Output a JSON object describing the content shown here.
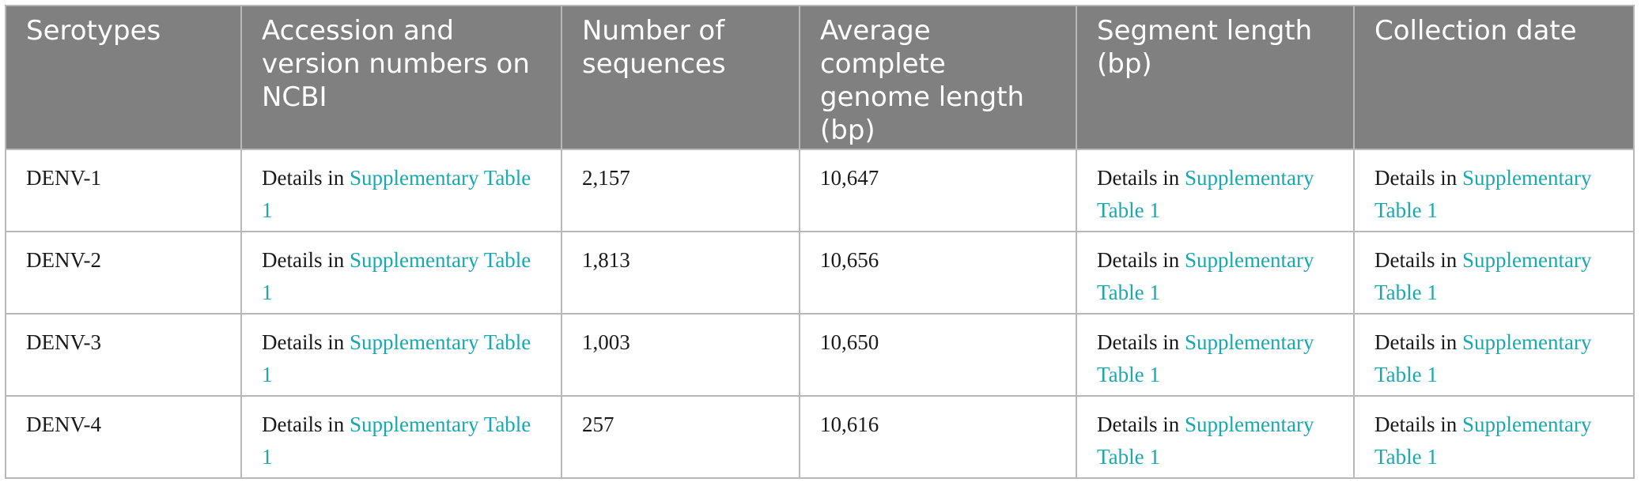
{
  "table": {
    "headers": [
      "Serotypes",
      "Accession and version numbers on NCBI",
      "Number of sequences",
      "Average complete genome length (bp)",
      "Segment length (bp)",
      "Collection date"
    ],
    "details_prefix": "Details in",
    "details_link": "Supplementary Table 1",
    "rows": [
      {
        "serotype": "DENV-1",
        "sequences": "2,157",
        "genome_length": "10,647"
      },
      {
        "serotype": "DENV-2",
        "sequences": "1,813",
        "genome_length": "10,656"
      },
      {
        "serotype": "DENV-3",
        "sequences": "1,003",
        "genome_length": "10,650"
      },
      {
        "serotype": "DENV-4",
        "sequences": "257",
        "genome_length": "10,616"
      }
    ]
  },
  "colors": {
    "header_bg": "#808080",
    "header_text": "#ffffff",
    "link": "#1aa8b0",
    "border": "#b8b8b8"
  }
}
